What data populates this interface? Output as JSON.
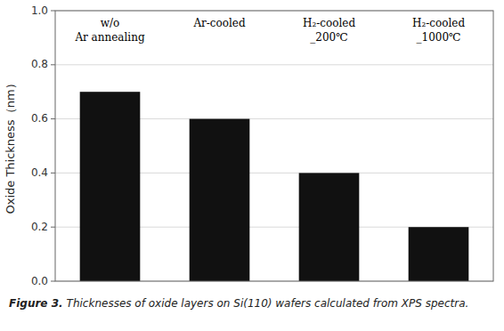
{
  "chart_data": {
    "type": "bar",
    "ylabel": "Oxide Thickness（nm）",
    "categories": [
      "w/o\nAr annealing",
      "Ar-cooled",
      "H₂-cooled\n_200℃",
      "H₂-cooled\n_1000℃"
    ],
    "values": [
      0.7,
      0.6,
      0.4,
      0.2
    ],
    "color": "#111111",
    "ylim": [
      0.0,
      1.0
    ],
    "yticks": [
      {
        "value": 0.0,
        "label": "0.0"
      },
      0.2,
      0.4,
      0.6,
      0.8,
      {
        "value": 1.0,
        "label": "1.0"
      }
    ],
    "grid": true,
    "figure_label": "Figure 3.",
    "caption": "Thicknesses of oxide layers on Si(110) wafers calculated from XPS spectra."
  }
}
